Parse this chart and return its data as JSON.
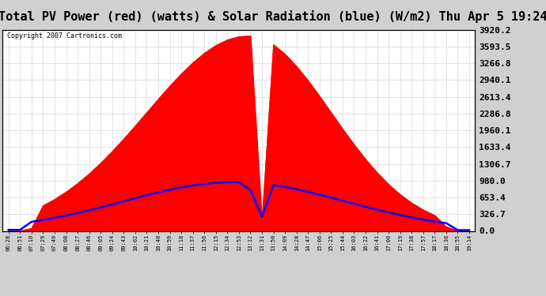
{
  "title": "Total PV Power (red) (watts) & Solar Radiation (blue) (W/m2) Thu Apr 5 19:24",
  "copyright": "Copyright 2007 Cartronics.com",
  "ymax": 3920.2,
  "yticks": [
    0.0,
    326.7,
    653.4,
    980.0,
    1306.7,
    1633.4,
    1960.1,
    2286.8,
    2613.4,
    2940.1,
    3266.8,
    3593.5,
    3920.2
  ],
  "xtick_labels": [
    "06:28",
    "06:51",
    "07:10",
    "07:29",
    "07:49",
    "08:08",
    "08:27",
    "08:46",
    "09:05",
    "09:24",
    "09:43",
    "10:02",
    "10:21",
    "10:40",
    "10:59",
    "11:18",
    "11:37",
    "11:56",
    "12:15",
    "12:34",
    "12:53",
    "13:12",
    "13:31",
    "13:50",
    "14:09",
    "14:28",
    "14:47",
    "15:06",
    "15:25",
    "15:44",
    "16:03",
    "16:22",
    "16:41",
    "17:00",
    "17:19",
    "17:38",
    "17:57",
    "18:17",
    "18:36",
    "18:55",
    "19:14"
  ],
  "bg_color": "#d0d0d0",
  "plot_bg": "#ffffff",
  "grid_color": "#c0c0c0",
  "title_fontsize": 11,
  "copyright_fontsize": 6,
  "ylabel_fontsize": 8,
  "xtick_fontsize": 5
}
